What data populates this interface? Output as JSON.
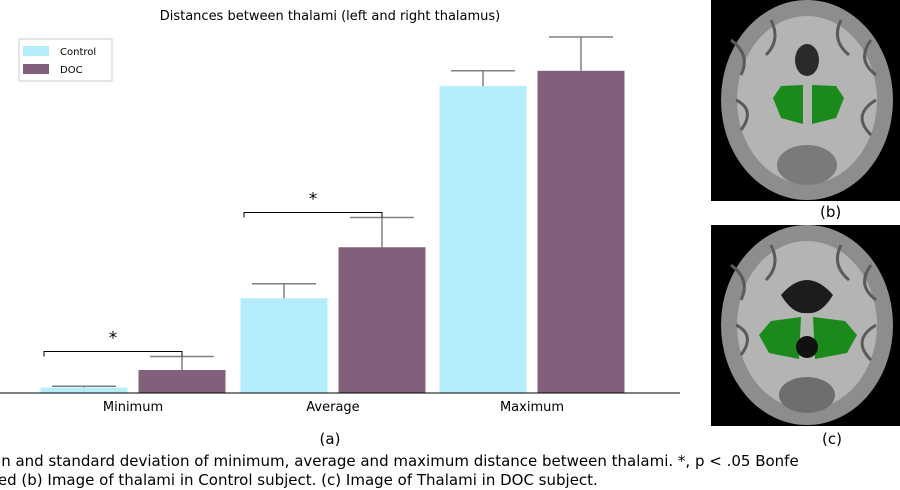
{
  "chart_data": {
    "type": "bar",
    "title": "Distances between thalami (left and right thalamus)",
    "categories": [
      "Minimum",
      "Average",
      "Maximum"
    ],
    "series": [
      {
        "name": "Control",
        "values": [
          1.2,
          21.0,
          68.0
        ],
        "errors": [
          0.3,
          3.2,
          3.4
        ]
      },
      {
        "name": "DOC",
        "values": [
          5.1,
          32.3,
          71.4
        ],
        "errors": [
          3.0,
          6.6,
          7.5
        ]
      }
    ],
    "ylim": [
      0,
      80
    ],
    "grid": false,
    "legend_position": "top-left",
    "significance": [
      {
        "category": "Minimum",
        "label": "*"
      },
      {
        "category": "Average",
        "label": "*"
      }
    ],
    "colors": {
      "Control": "#b3ecfa",
      "DOC": "#80607a",
      "errorbar": "#808080",
      "axis": "#000000"
    }
  },
  "panels": {
    "a_label": "(a)",
    "b_label": "(b)",
    "c_label": "(c)"
  },
  "caption": {
    "line1": "an and standard deviation of minimum, average and maximum distance between thalami. *, p < .05 Bonfe",
    "line2": "ted (b) Image of thalami in Control subject. (c) Image of Thalami in DOC subject."
  },
  "colors": {
    "thalamus_overlay": "#1a8a1a",
    "brain_tissue": "#9a9a9a",
    "background": "#000000"
  }
}
